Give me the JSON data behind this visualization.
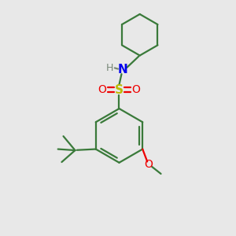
{
  "bg_color": "#e8e8e8",
  "bond_color": "#3a7a3a",
  "N_color": "#0000ee",
  "O_color": "#ee0000",
  "S_color": "#bbbb00",
  "H_color": "#778877",
  "line_width": 1.6,
  "figsize": [
    3.0,
    3.0
  ],
  "dpi": 100,
  "xlim": [
    0,
    10
  ],
  "ylim": [
    0,
    10
  ]
}
